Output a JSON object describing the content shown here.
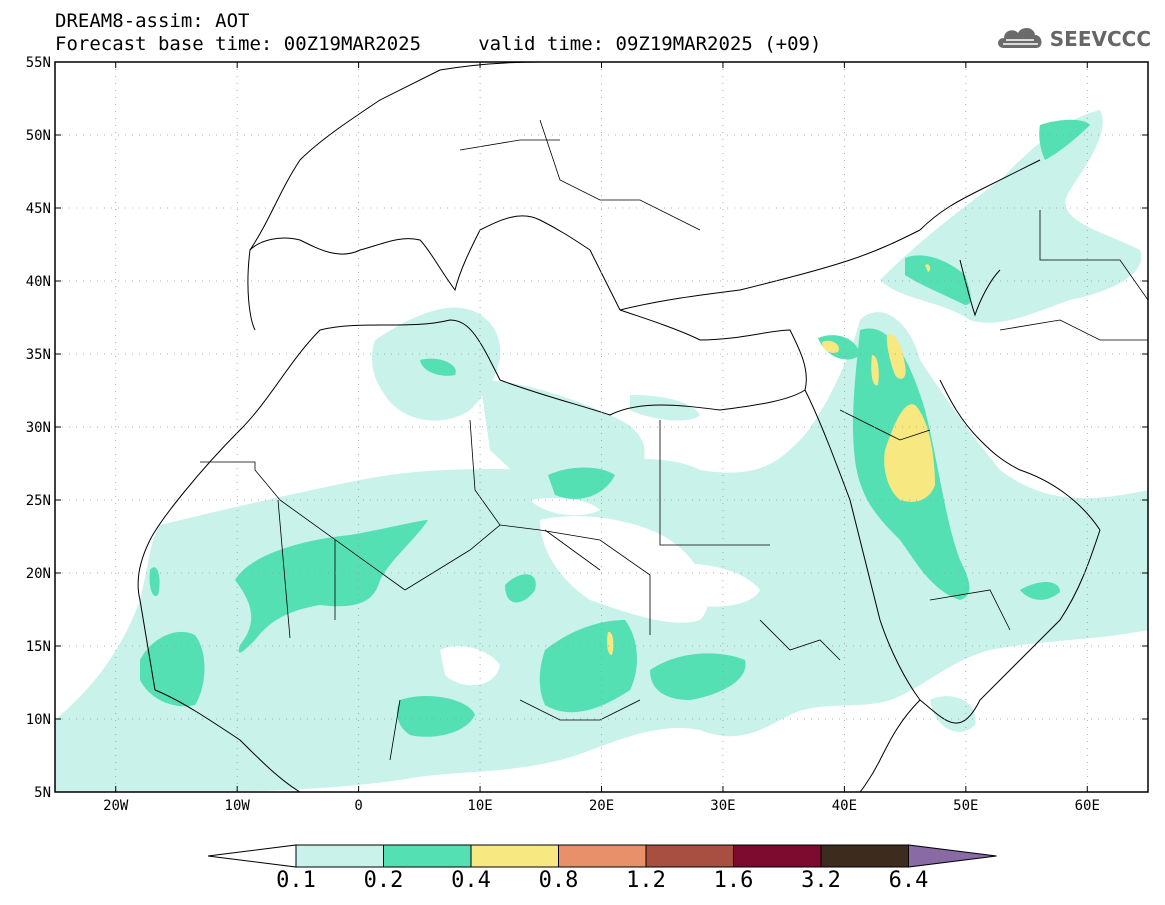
{
  "header": {
    "line1": "DREAM8-assim: AOT",
    "line2": "Forecast base time: 00Z19MAR2025     valid time: 09Z19MAR2025 (+09)"
  },
  "brand": {
    "text": "SEEVCCC",
    "icon": "cloud-logo-icon"
  },
  "map": {
    "lon_range": [
      -25,
      65
    ],
    "lat_range": [
      5,
      55
    ],
    "lat_ticks": [
      "5N",
      "10N",
      "15N",
      "20N",
      "25N",
      "30N",
      "35N",
      "40N",
      "45N",
      "50N",
      "55N"
    ],
    "lon_ticks": [
      "20W",
      "10W",
      "0",
      "10E",
      "20E",
      "30E",
      "40E",
      "50E",
      "60E"
    ],
    "grid": "dotted"
  },
  "colorbar": {
    "labels": [
      "0.1",
      "0.2",
      "0.4",
      "0.8",
      "1.2",
      "1.6",
      "3.2",
      "6.4"
    ],
    "colors": [
      "#ffffff",
      "#c8f2ea",
      "#55e0b4",
      "#f7e882",
      "#e8906a",
      "#a94f42",
      "#7d0b2f",
      "#3d2b1d",
      "#8a6aa5"
    ]
  }
}
